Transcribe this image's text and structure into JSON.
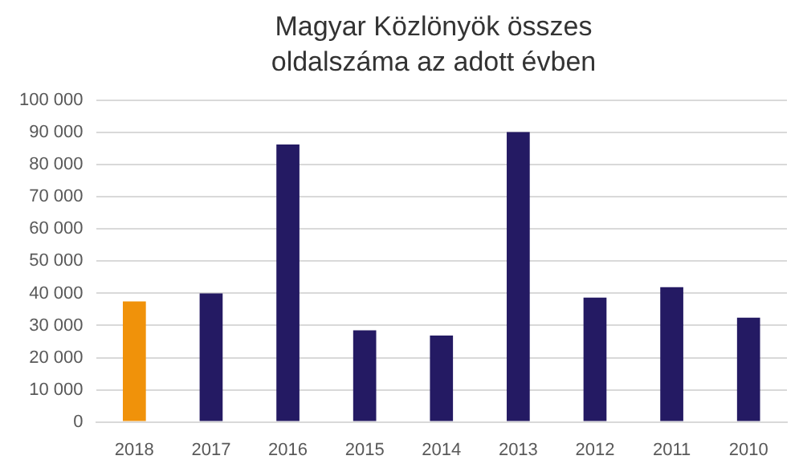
{
  "chart_data": {
    "type": "bar",
    "title": "Magyar Közlönyök összes oldalszáma az adott évben",
    "categories": [
      "2018",
      "2017",
      "2016",
      "2015",
      "2014",
      "2013",
      "2012",
      "2011",
      "2010"
    ],
    "values": [
      37500,
      40000,
      86300,
      28500,
      26900,
      90200,
      38700,
      41900,
      32400
    ],
    "colors": [
      "#f0920a",
      "#241a63",
      "#241a63",
      "#241a63",
      "#241a63",
      "#241a63",
      "#241a63",
      "#241a63",
      "#241a63"
    ],
    "ylim": [
      0,
      100000
    ],
    "yticks": [
      0,
      {
        "value": 10000,
        "label": "10 000"
      },
      {
        "value": 20000,
        "label": "20 000"
      },
      {
        "value": 30000,
        "label": "30 000"
      },
      {
        "value": 40000,
        "label": "40 000"
      },
      {
        "value": 50000,
        "label": "50 000"
      },
      {
        "value": 60000,
        "label": "60 000"
      },
      {
        "value": 70000,
        "label": "70 000"
      },
      {
        "value": 80000,
        "label": "80 000"
      },
      {
        "value": 90000,
        "label": "90 000"
      },
      {
        "value": 100000,
        "label": "100 000"
      }
    ],
    "grid": "y",
    "legend": false
  }
}
